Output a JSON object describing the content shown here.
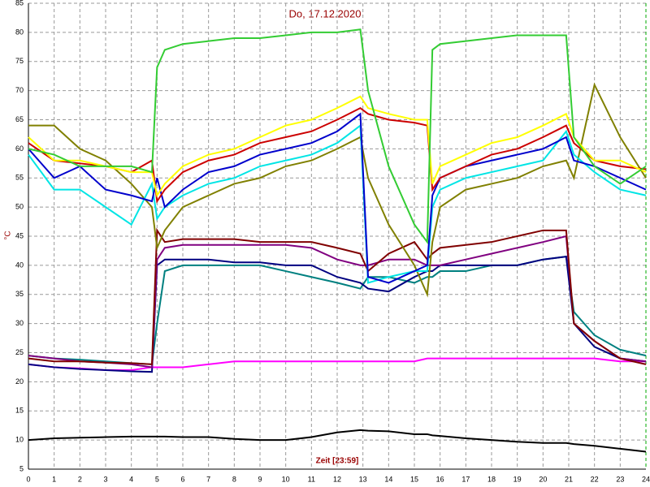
{
  "chart_data": {
    "type": "line",
    "title": "Do, 17.12.2020",
    "x_label": "Zeit [23:59]",
    "y_label": "°C",
    "xlim": [
      0,
      24
    ],
    "xticks": [
      0,
      1,
      2,
      3,
      4,
      5,
      6,
      7,
      8,
      9,
      10,
      11,
      12,
      13,
      14,
      15,
      16,
      17,
      18,
      19,
      20,
      21,
      22,
      23,
      24
    ],
    "ylim": [
      5,
      85
    ],
    "yticks": [
      5,
      10,
      15,
      20,
      25,
      30,
      35,
      40,
      45,
      50,
      55,
      60,
      65,
      70,
      75,
      80,
      85
    ],
    "grid": true,
    "x": [
      0,
      1,
      2,
      3,
      4,
      4.8,
      5,
      5.3,
      6,
      7,
      8,
      9,
      10,
      11,
      12,
      12.9,
      13.2,
      14,
      15,
      15.5,
      15.7,
      16,
      17,
      18,
      19,
      20,
      20.9,
      21.2,
      22,
      23,
      24
    ],
    "series": [
      {
        "color": "#000000",
        "values": [
          10,
          10.3,
          10.4,
          10.5,
          10.6,
          10.6,
          10.6,
          10.6,
          10.5,
          10.5,
          10.2,
          10,
          10,
          10.5,
          11.3,
          11.7,
          11.6,
          11.5,
          11,
          11,
          10.8,
          10.7,
          10.3,
          10,
          9.7,
          9.5,
          9.5,
          9.3,
          9,
          8.5,
          8
        ]
      },
      {
        "color": "#ff00ff",
        "values": [
          23,
          22.5,
          22.3,
          22,
          22,
          22.5,
          22.5,
          22.5,
          22.5,
          23,
          23.5,
          23.5,
          23.5,
          23.5,
          23.5,
          23.5,
          23.5,
          23.5,
          23.5,
          24,
          24,
          24,
          24,
          24,
          24,
          24,
          24,
          24,
          24,
          23.5,
          23.5
        ]
      },
      {
        "color": "#008080",
        "values": [
          24.5,
          24,
          23.8,
          23.5,
          23.2,
          23,
          30,
          39,
          40,
          40,
          40,
          40,
          39,
          38,
          37,
          36,
          38,
          38,
          37,
          38,
          38,
          39,
          39,
          40,
          40,
          41,
          41.5,
          32,
          28,
          25.5,
          24.5
        ]
      },
      {
        "color": "#000080",
        "values": [
          23,
          22.5,
          22.2,
          22,
          21.8,
          21.7,
          40,
          41,
          41,
          41,
          40.5,
          40.5,
          40,
          40,
          38,
          37,
          36,
          35.5,
          38,
          39,
          39,
          40,
          40,
          40,
          40,
          41,
          41.5,
          30,
          26,
          24,
          23.5
        ]
      },
      {
        "color": "#800080",
        "values": [
          24.5,
          24,
          23.5,
          23.3,
          23,
          22.5,
          41,
          43,
          43.5,
          43.5,
          43.5,
          43.5,
          43.5,
          43,
          41,
          40,
          40,
          41,
          41,
          40,
          40,
          40,
          41,
          42,
          43,
          44,
          45,
          30,
          27,
          24,
          23.5
        ]
      },
      {
        "color": "#800000",
        "values": [
          24,
          23.5,
          23.5,
          23.3,
          23.2,
          23,
          46,
          44,
          44.5,
          44.5,
          44.5,
          44,
          44,
          44,
          43,
          42,
          39,
          42,
          44,
          41,
          42,
          43,
          43.5,
          44,
          45,
          46,
          46,
          30,
          27,
          24,
          23
        ]
      },
      {
        "color": "#808000",
        "values": [
          64,
          64,
          60,
          58,
          54,
          50,
          43,
          46,
          50,
          52,
          54,
          55,
          57,
          58,
          60,
          62,
          55,
          47,
          40,
          35,
          44,
          50,
          53,
          54,
          55,
          57,
          58,
          55,
          71,
          62,
          55
        ]
      },
      {
        "color": "#00e5e5",
        "values": [
          59,
          53,
          53,
          50,
          47,
          54,
          48,
          50,
          52,
          54,
          55,
          57,
          58,
          59,
          61,
          64,
          37,
          38,
          39,
          39,
          50,
          53,
          55,
          56,
          57,
          58,
          63,
          59,
          56,
          53,
          52
        ]
      },
      {
        "color": "#0000cc",
        "values": [
          60,
          55,
          57,
          53,
          52,
          51,
          55,
          50,
          53,
          56,
          57,
          59,
          60,
          61,
          63,
          66,
          38,
          37,
          39,
          40,
          52,
          55,
          57,
          58,
          59,
          60,
          62,
          58,
          57,
          55,
          53
        ]
      },
      {
        "color": "#cc0000",
        "values": [
          61,
          58,
          57.5,
          57,
          56,
          58,
          51,
          53,
          56,
          58,
          59,
          61,
          62,
          63,
          65,
          67,
          66,
          65,
          64.5,
          64,
          53,
          55,
          57,
          59,
          60,
          62,
          64,
          61,
          58,
          57,
          56.5
        ]
      },
      {
        "color": "#ffff00",
        "values": [
          62,
          58,
          58,
          57,
          56,
          56,
          52,
          54,
          57,
          59,
          60,
          62,
          64,
          65,
          67,
          69,
          67,
          66,
          65,
          65,
          54,
          57,
          59,
          61,
          62,
          64,
          66,
          62,
          58,
          58,
          56
        ]
      },
      {
        "color": "#33cc33",
        "values": [
          60,
          59,
          57,
          57,
          57,
          56,
          74,
          77,
          78,
          78.5,
          79,
          79,
          79.5,
          80,
          80,
          80.5,
          70,
          57,
          47,
          44,
          77,
          78,
          78.5,
          79,
          79.5,
          79.5,
          79.5,
          62,
          57,
          54,
          57
        ]
      }
    ]
  }
}
